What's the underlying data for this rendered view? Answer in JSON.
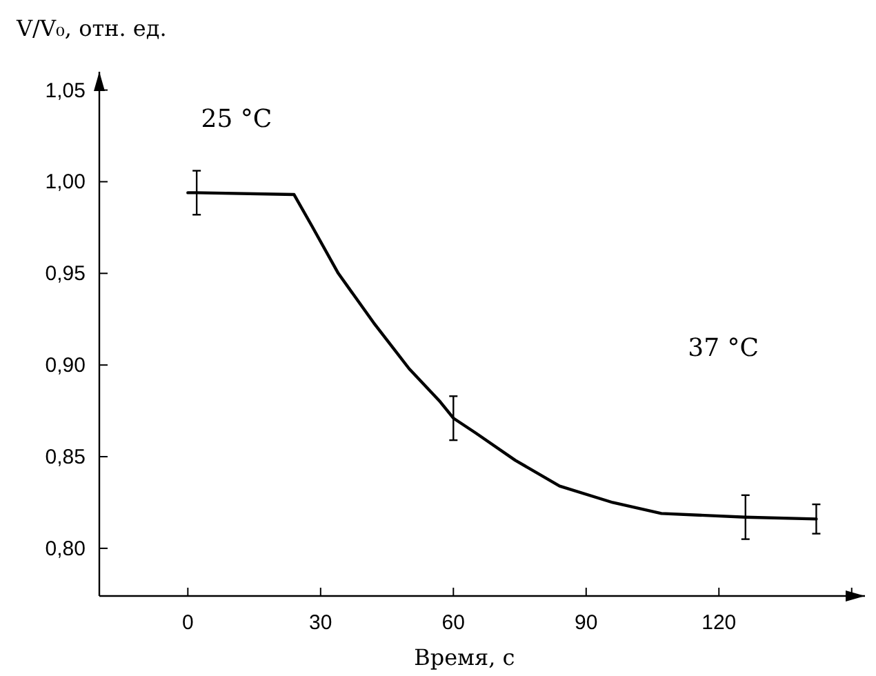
{
  "chart_data": {
    "type": "line",
    "xlabel": "Время, с",
    "ylabel": "V/V₀, отн. ед.",
    "annotations": [
      "25 °C",
      "37 °C"
    ],
    "x": [
      0,
      2,
      24,
      28,
      34,
      42,
      50,
      57,
      60,
      65,
      74,
      84,
      96,
      107,
      126,
      142
    ],
    "series": [
      {
        "color": "#000000",
        "values": [
          0.994,
          0.994,
          0.993,
          0.976,
          0.95,
          0.923,
          0.898,
          0.88,
          0.871,
          0.863,
          0.848,
          0.834,
          0.825,
          0.819,
          0.817,
          0.816
        ],
        "errors": [
          null,
          0.012,
          null,
          null,
          null,
          null,
          null,
          null,
          0.012,
          null,
          null,
          null,
          null,
          null,
          0.012,
          0.008
        ]
      }
    ],
    "xlim": [
      -20,
      153
    ],
    "xticks": [
      0,
      30,
      60,
      90,
      120,
      {
        "value": 150,
        "label": null
      }
    ],
    "ylim": [
      0.774,
      1.06
    ],
    "yticks": [
      {
        "value": 0.8,
        "label": "0,80"
      },
      {
        "value": 0.85,
        "label": "0,85"
      },
      {
        "value": 0.9,
        "label": "0,90"
      },
      {
        "value": 0.95,
        "label": "0,95"
      },
      {
        "value": 1,
        "label": "1,00"
      },
      {
        "value": 1.05,
        "label": "1,05"
      }
    ],
    "grid": false,
    "marker": "none",
    "line_style": "solid"
  }
}
